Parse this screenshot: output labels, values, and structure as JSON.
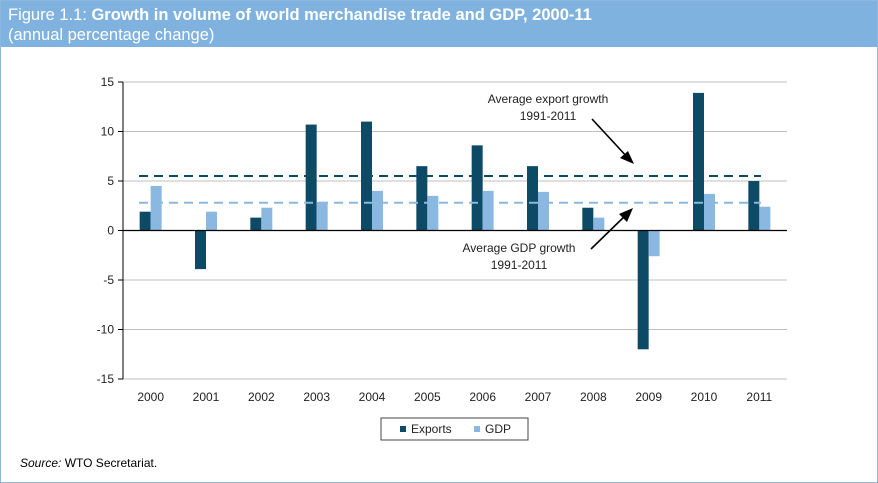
{
  "header": {
    "figure_label": "Figure 1.1:",
    "title": "Growth in volume of world merchandise trade and GDP, 2000-11",
    "subtitle": "(annual percentage change)"
  },
  "source": {
    "label": "Source:",
    "text": "WTO Secretariat."
  },
  "colors": {
    "header_bg": "#7fb2de",
    "exports": "#0d4a66",
    "gdp": "#8ab8e0"
  },
  "chart_data": {
    "type": "bar",
    "categories": [
      "2000",
      "2001",
      "2002",
      "2003",
      "2004",
      "2005",
      "2006",
      "2007",
      "2008",
      "2009",
      "2010",
      "2011"
    ],
    "series": [
      {
        "name": "Exports",
        "color": "#0d4a66",
        "values": [
          1.9,
          -3.9,
          1.3,
          10.7,
          11.0,
          6.5,
          8.6,
          6.5,
          2.3,
          -12.0,
          13.9,
          5.0
        ]
      },
      {
        "name": "GDP",
        "color": "#8ab8e0",
        "values": [
          4.5,
          1.9,
          2.3,
          2.9,
          4.0,
          3.5,
          4.0,
          3.9,
          1.3,
          -2.6,
          3.7,
          2.4
        ]
      }
    ],
    "ylim": [
      -15,
      15
    ],
    "yticks": [
      15,
      10,
      5,
      0,
      -5,
      -10,
      -15
    ],
    "grid": true,
    "legend": "bottom-center",
    "reference_lines": [
      {
        "name": "export_avg",
        "value": 5.5,
        "color": "#0d4a66",
        "style": "dashed"
      },
      {
        "name": "gdp_avg",
        "value": 2.8,
        "color": "#8ab8e0",
        "style": "dashed"
      }
    ],
    "annotations": {
      "export_avg_line1": "Average export growth",
      "export_avg_line2": "1991-2011",
      "gdp_avg_line1": "Average GDP growth",
      "gdp_avg_line2": "1991-2011"
    }
  }
}
